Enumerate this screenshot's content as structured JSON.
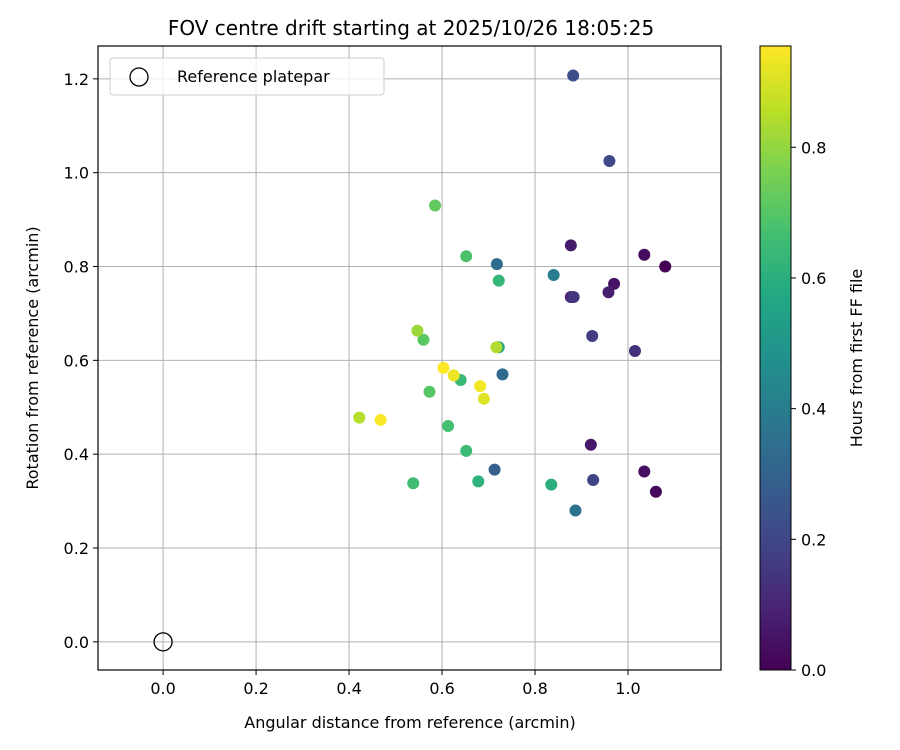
{
  "chart_data": {
    "type": "scatter",
    "title": "FOV centre drift starting at 2025/10/26 18:05:25",
    "xlabel": "Angular distance from reference (arcmin)",
    "ylabel": "Rotation from reference (arcmin)",
    "xlim": [
      -0.14,
      1.2
    ],
    "ylim": [
      -0.06,
      1.27
    ],
    "xticks": [
      0.0,
      0.2,
      0.4,
      0.6,
      0.8,
      1.0
    ],
    "xtick_labels": [
      "0.0",
      "0.2",
      "0.4",
      "0.6",
      "0.8",
      "1.0"
    ],
    "yticks": [
      0.0,
      0.2,
      0.4,
      0.6,
      0.8,
      1.0,
      1.2
    ],
    "ytick_labels": [
      "0.0",
      "0.2",
      "0.4",
      "0.6",
      "0.8",
      "1.0",
      "1.2"
    ],
    "grid": true,
    "legend": {
      "position": "top-left",
      "entries": [
        "Reference platepar"
      ]
    },
    "reference_point": {
      "x": 0.0,
      "y": 0.0,
      "label": "Reference platepar"
    },
    "colorbar": {
      "label": "Hours from first FF file",
      "range": [
        0.0,
        0.955
      ],
      "ticks": [
        0.0,
        0.2,
        0.4,
        0.6,
        0.8
      ],
      "tick_labels": [
        "0.0",
        "0.2",
        "0.4",
        "0.6",
        "0.8"
      ],
      "colormap": "viridis"
    },
    "points": [
      {
        "x": 1.08,
        "y": 0.8,
        "c": 0.0
      },
      {
        "x": 1.06,
        "y": 0.32,
        "c": 0.02
      },
      {
        "x": 1.035,
        "y": 0.825,
        "c": 0.03
      },
      {
        "x": 1.035,
        "y": 0.363,
        "c": 0.04
      },
      {
        "x": 0.97,
        "y": 0.763,
        "c": 0.05
      },
      {
        "x": 0.92,
        "y": 0.42,
        "c": 0.06
      },
      {
        "x": 0.877,
        "y": 0.845,
        "c": 0.07
      },
      {
        "x": 0.958,
        "y": 0.745,
        "c": 0.08
      },
      {
        "x": 0.877,
        "y": 0.735,
        "c": 0.1
      },
      {
        "x": 1.015,
        "y": 0.62,
        "c": 0.13
      },
      {
        "x": 0.883,
        "y": 0.735,
        "c": 0.15
      },
      {
        "x": 0.923,
        "y": 0.652,
        "c": 0.17
      },
      {
        "x": 0.925,
        "y": 0.345,
        "c": 0.19
      },
      {
        "x": 0.96,
        "y": 1.025,
        "c": 0.21
      },
      {
        "x": 0.882,
        "y": 1.207,
        "c": 0.23
      },
      {
        "x": 0.713,
        "y": 0.367,
        "c": 0.29
      },
      {
        "x": 0.73,
        "y": 0.57,
        "c": 0.32
      },
      {
        "x": 0.718,
        "y": 0.805,
        "c": 0.34
      },
      {
        "x": 0.887,
        "y": 0.28,
        "c": 0.36
      },
      {
        "x": 0.84,
        "y": 0.782,
        "c": 0.4
      },
      {
        "x": 0.722,
        "y": 0.628,
        "c": 0.56
      },
      {
        "x": 0.835,
        "y": 0.335,
        "c": 0.6
      },
      {
        "x": 0.678,
        "y": 0.342,
        "c": 0.61
      },
      {
        "x": 0.722,
        "y": 0.77,
        "c": 0.63
      },
      {
        "x": 0.64,
        "y": 0.558,
        "c": 0.64
      },
      {
        "x": 0.652,
        "y": 0.407,
        "c": 0.65
      },
      {
        "x": 0.538,
        "y": 0.338,
        "c": 0.66
      },
      {
        "x": 0.613,
        "y": 0.46,
        "c": 0.67
      },
      {
        "x": 0.652,
        "y": 0.822,
        "c": 0.68
      },
      {
        "x": 0.573,
        "y": 0.533,
        "c": 0.7
      },
      {
        "x": 0.56,
        "y": 0.644,
        "c": 0.71
      },
      {
        "x": 0.585,
        "y": 0.93,
        "c": 0.72
      },
      {
        "x": 0.547,
        "y": 0.663,
        "c": 0.81
      },
      {
        "x": 0.717,
        "y": 0.628,
        "c": 0.84
      },
      {
        "x": 0.422,
        "y": 0.478,
        "c": 0.85
      },
      {
        "x": 0.69,
        "y": 0.518,
        "c": 0.91
      },
      {
        "x": 0.625,
        "y": 0.568,
        "c": 0.93
      },
      {
        "x": 0.682,
        "y": 0.545,
        "c": 0.94
      },
      {
        "x": 0.468,
        "y": 0.473,
        "c": 0.95
      },
      {
        "x": 0.603,
        "y": 0.584,
        "c": 0.955
      }
    ]
  }
}
